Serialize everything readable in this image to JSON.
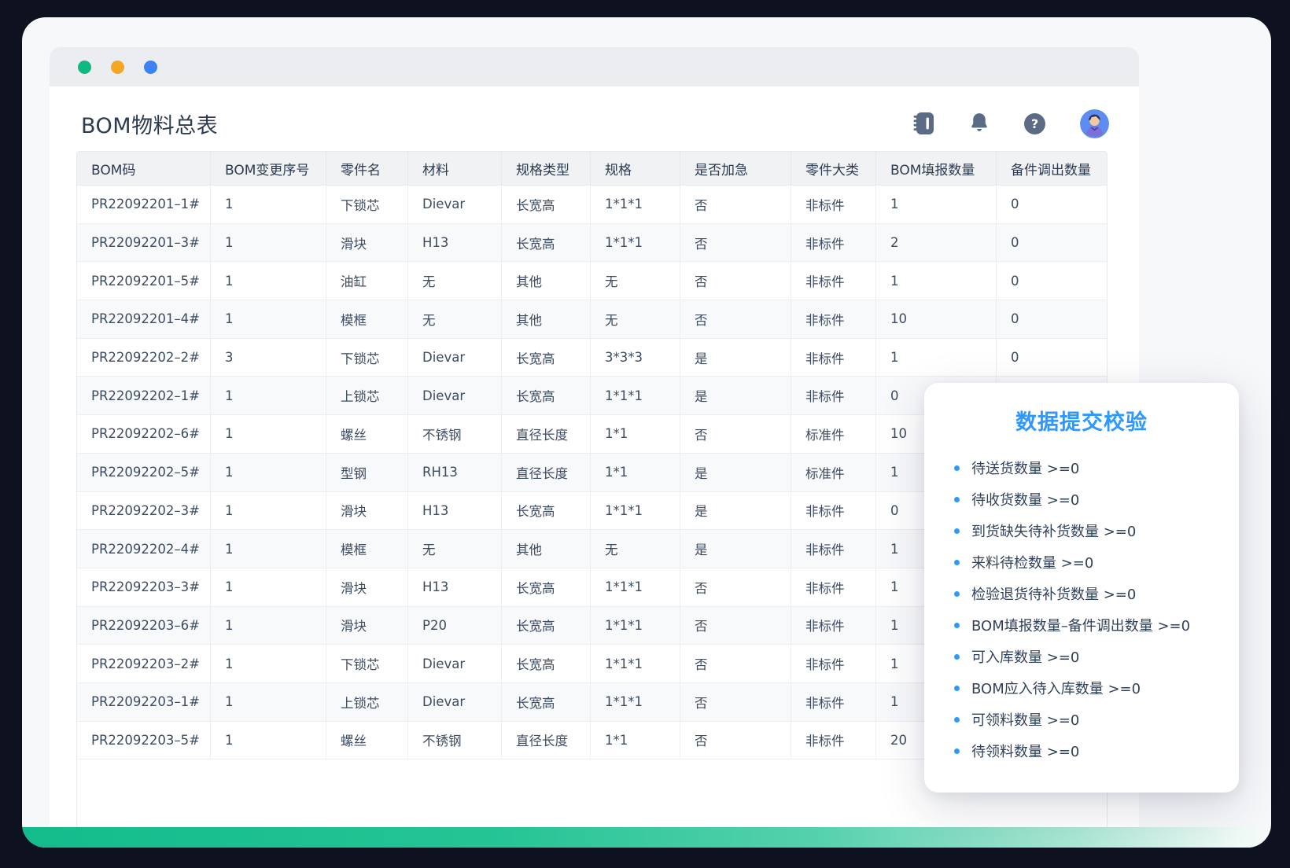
{
  "window": {
    "title": "BOM物料总表",
    "traffic_lights": {
      "close": "#10b981",
      "minimize": "#f5a623",
      "maximize": "#3b82f6"
    }
  },
  "header": {
    "icons": [
      {
        "name": "notebook-icon"
      },
      {
        "name": "bell-icon"
      },
      {
        "name": "help-icon",
        "label": "?"
      },
      {
        "name": "avatar"
      }
    ],
    "help_label": "?"
  },
  "table": {
    "columns": [
      "BOM码",
      "BOM变更序号",
      "零件名",
      "材料",
      "规格类型",
      "规格",
      "是否加急",
      "零件大类",
      "BOM填报数量",
      "备件调出数量"
    ],
    "rows": [
      [
        "PR22092201–1#",
        "1",
        "下锁芯",
        "Dievar",
        "长宽高",
        "1*1*1",
        "否",
        "非标件",
        "1",
        "0"
      ],
      [
        "PR22092201–3#",
        "1",
        "滑块",
        "H13",
        "长宽高",
        "1*1*1",
        "否",
        "非标件",
        "2",
        "0"
      ],
      [
        "PR22092201–5#",
        "1",
        "油缸",
        "无",
        "其他",
        "无",
        "否",
        "非标件",
        "1",
        "0"
      ],
      [
        "PR22092201–4#",
        "1",
        "模框",
        "无",
        "其他",
        "无",
        "否",
        "非标件",
        "10",
        "0"
      ],
      [
        "PR22092202–2#",
        "3",
        "下锁芯",
        "Dievar",
        "长宽高",
        "3*3*3",
        "是",
        "非标件",
        "1",
        "0"
      ],
      [
        "PR22092202–1#",
        "1",
        "上锁芯",
        "Dievar",
        "长宽高",
        "1*1*1",
        "是",
        "非标件",
        "0",
        ""
      ],
      [
        "PR22092202–6#",
        "1",
        "螺丝",
        "不锈钢",
        "直径长度",
        "1*1",
        "否",
        "标准件",
        "10",
        ""
      ],
      [
        "PR22092202–5#",
        "1",
        "型钢",
        "RH13",
        "直径长度",
        "1*1",
        "是",
        "标准件",
        "1",
        ""
      ],
      [
        "PR22092202–3#",
        "1",
        "滑块",
        "H13",
        "长宽高",
        "1*1*1",
        "是",
        "非标件",
        "0",
        ""
      ],
      [
        "PR22092202–4#",
        "1",
        "模框",
        "无",
        "其他",
        "无",
        "是",
        "非标件",
        "1",
        ""
      ],
      [
        "PR22092203–3#",
        "1",
        "滑块",
        "H13",
        "长宽高",
        "1*1*1",
        "否",
        "非标件",
        "1",
        ""
      ],
      [
        "PR22092203–6#",
        "1",
        "滑块",
        "P20",
        "长宽高",
        "1*1*1",
        "否",
        "非标件",
        "1",
        ""
      ],
      [
        "PR22092203–2#",
        "1",
        "下锁芯",
        "Dievar",
        "长宽高",
        "1*1*1",
        "否",
        "非标件",
        "1",
        ""
      ],
      [
        "PR22092203–1#",
        "1",
        "上锁芯",
        "Dievar",
        "长宽高",
        "1*1*1",
        "否",
        "非标件",
        "1",
        ""
      ],
      [
        "PR22092203–5#",
        "1",
        "螺丝",
        "不锈钢",
        "直径长度",
        "1*1",
        "否",
        "非标件",
        "20",
        ""
      ]
    ]
  },
  "validation_card": {
    "title": "数据提交校验",
    "items": [
      "待送货数量 >=0",
      "待收货数量 >=0",
      "到货缺失待补货数量 >=0",
      "来料待检数量 >=0",
      "检验退货待补货数量 >=0",
      "BOM填报数量–备件调出数量 >=0",
      "可入库数量 >=0",
      "BOM应入待入库数量 >=0",
      "可领料数量 >=0",
      "待领料数量 >=0"
    ]
  },
  "colors": {
    "page_background": "#0d1120",
    "shell_background": "#f7f8fa",
    "titlebar": "#ebedf1",
    "accent_blue": "#2d98ff",
    "icon_slate": "#5b6b85",
    "avatar_background": "#5d8df2",
    "teal_gradient_start": "#13bc8c",
    "teal_gradient_end": "#f6fbf9",
    "table_header_background": "#f1f2f4",
    "row_alt_background": "#f8f9fb"
  }
}
